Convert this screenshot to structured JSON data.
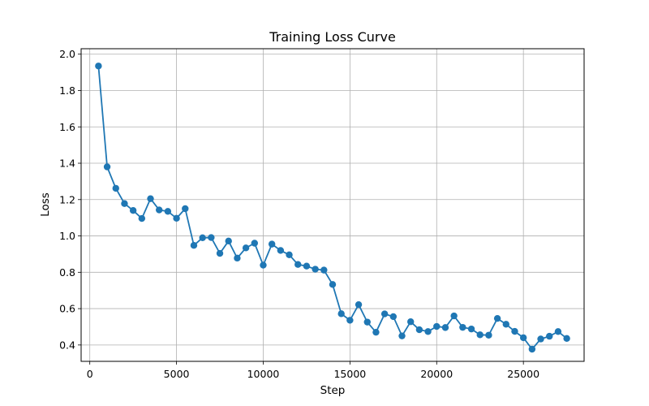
{
  "chart_data": {
    "type": "line",
    "title": "Training Loss Curve",
    "xlabel": "Step",
    "ylabel": "Loss",
    "xlim": [
      -500,
      28500
    ],
    "ylim": [
      0.31,
      2.03
    ],
    "xticks": [
      0,
      5000,
      10000,
      15000,
      20000,
      25000
    ],
    "yticks": [
      0.4,
      0.6,
      0.8,
      1.0,
      1.2,
      1.4,
      1.6,
      1.8,
      2.0
    ],
    "ytick_labels": [
      "0.4",
      "0.6",
      "0.8",
      "1.0",
      "1.2",
      "1.4",
      "1.6",
      "1.8",
      "2.0"
    ],
    "grid": true,
    "color": "#1f77b4",
    "marker": "circle",
    "series": [
      {
        "x": [
          500,
          1000,
          1500,
          2000,
          2500,
          3000,
          3500,
          4000,
          4500,
          5000,
          5500,
          6000,
          6500,
          7000,
          7500,
          8000,
          8500,
          9000,
          9500,
          10000,
          10500,
          11000,
          11500,
          12000,
          12500,
          13000,
          13500,
          14000,
          14500,
          15000,
          15500,
          16000,
          16500,
          17000,
          17500,
          18000,
          18500,
          19000,
          19500,
          20000,
          20500,
          21000,
          21500,
          22000,
          22500,
          23000,
          23500,
          24000,
          24500,
          25000,
          25500,
          26000,
          26500,
          27000,
          27500
        ],
        "values": [
          1.935,
          1.38,
          1.262,
          1.178,
          1.14,
          1.096,
          1.205,
          1.143,
          1.135,
          1.097,
          1.15,
          0.948,
          0.99,
          0.991,
          0.904,
          0.972,
          0.878,
          0.934,
          0.96,
          0.839,
          0.955,
          0.92,
          0.896,
          0.843,
          0.834,
          0.817,
          0.812,
          0.733,
          0.572,
          0.536,
          0.622,
          0.526,
          0.47,
          0.571,
          0.556,
          0.45,
          0.528,
          0.484,
          0.474,
          0.502,
          0.496,
          0.56,
          0.497,
          0.488,
          0.456,
          0.454,
          0.546,
          0.514,
          0.475,
          0.44,
          0.377,
          0.433,
          0.448,
          0.474,
          0.436
        ]
      }
    ]
  }
}
